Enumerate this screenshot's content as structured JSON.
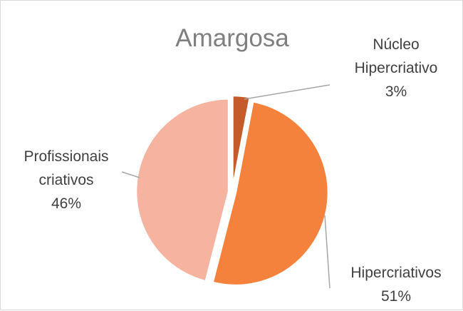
{
  "chart_data": {
    "type": "pie",
    "title": "Amargosa",
    "slices": [
      {
        "name": "Núcleo Hipercriativo",
        "label_lines": [
          "Núcleo",
          "Hipercriativo"
        ],
        "percent_label": "3%",
        "value": 3,
        "color": "#c55a2a"
      },
      {
        "name": "Hipercriativos",
        "label_lines": [
          "Hipercriativos"
        ],
        "percent_label": "51%",
        "value": 51,
        "color": "#f4823c"
      },
      {
        "name": "Profissionais criativos",
        "label_lines": [
          "Profissionais",
          "criativos"
        ],
        "percent_label": "46%",
        "value": 46,
        "color": "#f5b3a0"
      }
    ],
    "legend": "none",
    "data_labels": "outside-with-leader-lines"
  }
}
